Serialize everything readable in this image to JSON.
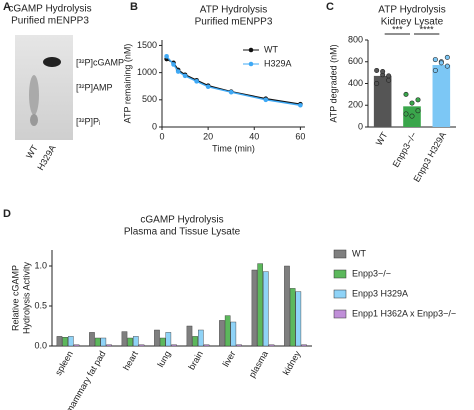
{
  "panel_labels": [
    "A",
    "B",
    "C",
    "D"
  ],
  "panel_a": {
    "title": [
      "cGAMP Hydrolysis",
      "Purified mENPP3"
    ],
    "bands": [
      "[³²P]cGAMP",
      "[³²P]AMP",
      "[³²P]Pᵢ"
    ],
    "lanes": [
      "WT",
      "H329A"
    ]
  },
  "chart_data": [
    {
      "type": "line",
      "title": "ATP Hydrolysis",
      "subtitle": "Purified mENPP3",
      "x_label": "Time (min)",
      "y_label": "ATP remaining (nM)",
      "x": [
        2,
        5,
        7,
        10,
        15,
        20,
        30,
        45,
        60
      ],
      "series": [
        {
          "name": "WT",
          "color": "#111111",
          "values": [
            1250,
            1180,
            1050,
            960,
            860,
            760,
            650,
            520,
            420
          ]
        },
        {
          "name": "H329A",
          "color": "#3fa9f5",
          "values": [
            1300,
            1150,
            1020,
            940,
            840,
            740,
            640,
            500,
            400
          ]
        }
      ],
      "xlim": [
        0,
        62
      ],
      "xticks": [
        0,
        20,
        40,
        60
      ],
      "ylim": [
        0,
        1600
      ],
      "yticks": [
        0,
        500,
        1000,
        1500
      ],
      "legend": "upper-right"
    },
    {
      "type": "bar",
      "title": "ATP Hydrolysis",
      "subtitle": "Kidney Lysate",
      "y_label": "ATP degraded (nM)",
      "categories": [
        "WT",
        "Enpp3−/−",
        "Enpp3 H329A"
      ],
      "values": [
        470,
        190,
        570
      ],
      "colors": [
        "#555555",
        "#3aa64b",
        "#7cc7f5"
      ],
      "points": [
        [
          520,
          480,
          430,
          400,
          510,
          470
        ],
        [
          300,
          220,
          150,
          120,
          100,
          250
        ],
        [
          620,
          600,
          560,
          520,
          590,
          640
        ]
      ],
      "annotations": [
        "***",
        "****"
      ],
      "ylim": [
        0,
        800
      ],
      "yticks": [
        0,
        200,
        400,
        600,
        800
      ]
    },
    {
      "type": "grouped-bar",
      "title": "cGAMP Hydrolysis",
      "subtitle": "Plasma and Tissue Lysate",
      "y_label": [
        "Relative cGAMP",
        "Hydrolysis Activity"
      ],
      "categories": [
        "spleen",
        "mammary fat pad",
        "heart",
        "lung",
        "brain",
        "liver",
        "plasma",
        "kidney"
      ],
      "series": [
        {
          "name": "WT",
          "color": "#7f7f7f",
          "values": [
            0.12,
            0.17,
            0.18,
            0.2,
            0.25,
            0.32,
            0.95,
            1.0
          ]
        },
        {
          "name": "Enpp3−/−",
          "color": "#5cb85c",
          "values": [
            0.11,
            0.1,
            0.1,
            0.1,
            0.12,
            0.38,
            1.03,
            0.72
          ]
        },
        {
          "name": "Enpp3 H329A",
          "color": "#8fd3f7",
          "values": [
            0.12,
            0.1,
            0.12,
            0.17,
            0.2,
            0.3,
            0.93,
            0.68
          ]
        },
        {
          "name": "Enpp1 H362A x Enpp3−/−",
          "color": "#c08fd8",
          "values": [
            0,
            0,
            0,
            0,
            0,
            0,
            0,
            0
          ]
        }
      ],
      "ylim": [
        0,
        1.2
      ],
      "yticks": [
        {
          "value": 0,
          "label": "0.0"
        },
        {
          "value": 0.5,
          "label": "0.5"
        },
        {
          "value": 1,
          "label": "1.0"
        }
      ],
      "legend": "right"
    }
  ]
}
